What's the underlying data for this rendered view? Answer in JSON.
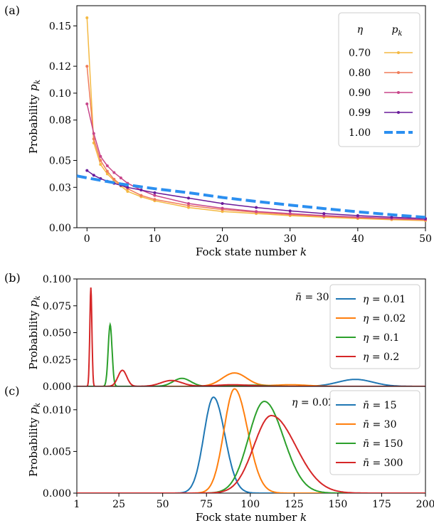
{
  "chart_data": [
    {
      "type": "line",
      "panel_label": "(a)",
      "xlabel": "Fock state number k",
      "ylabel": "Probability p_k",
      "xlim": [
        -1.5,
        50
      ],
      "ylim": [
        0,
        0.165
      ],
      "xticks": [
        0,
        10,
        20,
        30,
        40,
        50
      ],
      "yticks": [
        0.0,
        0.03,
        0.05,
        0.08,
        0.1,
        0.12,
        0.15
      ],
      "ytick_labels": [
        "0.00",
        "0.03",
        "0.05",
        "0.08",
        "0.10",
        "0.12",
        "0.15"
      ],
      "legend": {
        "position": "top-right",
        "header_left": "η",
        "header_right": "p_k"
      },
      "series": [
        {
          "name": "0.70",
          "color": "#f4b942",
          "x": [
            0,
            1,
            2,
            3,
            4,
            5,
            6,
            8,
            10,
            15,
            20,
            25,
            30,
            35,
            40,
            45,
            50
          ],
          "y": [
            0.156,
            0.063,
            0.047,
            0.04,
            0.035,
            0.031,
            0.027,
            0.023,
            0.02,
            0.015,
            0.012,
            0.0105,
            0.009,
            0.0078,
            0.0068,
            0.006,
            0.0053
          ]
        },
        {
          "name": "0.80",
          "color": "#f07c5a",
          "x": [
            0,
            1,
            2,
            3,
            4,
            5,
            6,
            8,
            10,
            15,
            20,
            25,
            30,
            35,
            40,
            45,
            50
          ],
          "y": [
            0.12,
            0.066,
            0.05,
            0.042,
            0.036,
            0.032,
            0.029,
            0.024,
            0.021,
            0.0165,
            0.0135,
            0.0115,
            0.0098,
            0.0085,
            0.0074,
            0.0065,
            0.0058
          ]
        },
        {
          "name": "0.90",
          "color": "#c8468a",
          "x": [
            0,
            1,
            2,
            3,
            4,
            5,
            6,
            8,
            10,
            15,
            20,
            25,
            30,
            35,
            40,
            45,
            50
          ],
          "y": [
            0.092,
            0.07,
            0.053,
            0.046,
            0.041,
            0.037,
            0.033,
            0.028,
            0.024,
            0.018,
            0.0145,
            0.012,
            0.0105,
            0.009,
            0.0079,
            0.0069,
            0.0061
          ]
        },
        {
          "name": "0.99",
          "color": "#6a1b9a",
          "x": [
            0,
            1,
            2,
            3,
            4,
            5,
            6,
            8,
            10,
            15,
            20,
            25,
            30,
            35,
            40,
            45,
            50
          ],
          "y": [
            0.0425,
            0.039,
            0.0365,
            0.0345,
            0.033,
            0.0315,
            0.03,
            0.028,
            0.026,
            0.022,
            0.018,
            0.015,
            0.0125,
            0.0105,
            0.009,
            0.0078,
            0.0068
          ]
        },
        {
          "name": "1.00",
          "color": "#2b8ff0",
          "dashed": true,
          "x": [
            -1.5,
            0,
            5,
            10,
            15,
            20,
            25,
            30,
            35,
            40,
            45,
            50
          ],
          "y": [
            0.0385,
            0.037,
            0.0325,
            0.029,
            0.026,
            0.0225,
            0.0195,
            0.0168,
            0.0142,
            0.0118,
            0.0096,
            0.0077
          ]
        }
      ]
    },
    {
      "type": "line",
      "panel_label": "(b)",
      "xlabel": "",
      "ylabel": "Probability p_k",
      "xlim": [
        1,
        200
      ],
      "ylim": [
        0,
        0.1
      ],
      "yticks": [
        0.0,
        0.025,
        0.05,
        0.075,
        0.1
      ],
      "ytick_labels": [
        "0.000",
        "0.025",
        "0.050",
        "0.075",
        "0.100"
      ],
      "annotation": "n̄ = 30",
      "legend": {
        "position": "top-right"
      },
      "series": [
        {
          "name": "η = 0.01",
          "color": "#1f77b4",
          "peaks": [
            [
              160,
              0.0065,
              10
            ]
          ]
        },
        {
          "name": "η = 0.02",
          "color": "#ff7f0e",
          "peaks": [
            [
              91,
              0.0125,
              7
            ],
            [
              123,
              0.0015,
              10
            ]
          ]
        },
        {
          "name": "η = 0.1",
          "color": "#2ca02c",
          "peaks": [
            [
              20,
              0.0575,
              1.1
            ],
            [
              61,
              0.0075,
              5
            ],
            [
              100,
              0.0012,
              8
            ]
          ]
        },
        {
          "name": "η = 0.2",
          "color": "#d62728",
          "peaks": [
            [
              9,
              0.092,
              0.6
            ],
            [
              27,
              0.015,
              2.5
            ],
            [
              55,
              0.0055,
              6
            ],
            [
              90,
              0.0015,
              10
            ]
          ]
        }
      ]
    },
    {
      "type": "line",
      "panel_label": "(c)",
      "xlabel": "Fock state number k",
      "ylabel": "Probability p_k",
      "xlim": [
        1,
        200
      ],
      "ylim": [
        0,
        0.0128
      ],
      "xticks": [
        1,
        25,
        50,
        75,
        100,
        125,
        150,
        175,
        200
      ],
      "yticks": [
        0.0,
        0.005,
        0.01
      ],
      "ytick_labels": [
        "0.000",
        "0.005",
        "0.010"
      ],
      "annotation": "η = 0.02",
      "legend": {
        "position": "top-right"
      },
      "series": [
        {
          "name": "n̄ = 15",
          "color": "#1f77b4",
          "peak": [
            79,
            0.0115,
            5.5,
            6.5
          ]
        },
        {
          "name": "n̄ = 30",
          "color": "#ff7f0e",
          "peak": [
            91,
            0.0125,
            6,
            7.5
          ]
        },
        {
          "name": "n̄ = 150",
          "color": "#2ca02c",
          "peak": [
            108,
            0.011,
            9,
            11
          ]
        },
        {
          "name": "n̄ = 300",
          "color": "#d62728",
          "peak": [
            112,
            0.0093,
            10,
            14
          ]
        }
      ]
    }
  ]
}
